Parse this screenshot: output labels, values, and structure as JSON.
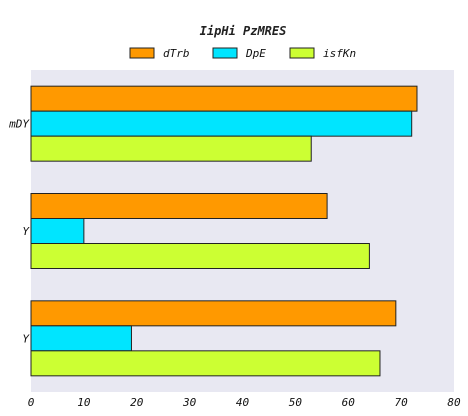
{
  "chart_data": {
    "type": "bar",
    "orientation": "horizontal",
    "title": "IipHi PzMRES",
    "xlabel": "",
    "ylabel": "",
    "categories": [
      "Y",
      "Y",
      "mDY"
    ],
    "series": [
      {
        "name": "dTrb",
        "color": "#ff9900",
        "values": [
          69,
          56,
          73
        ]
      },
      {
        "name": "DpE",
        "color": "#00e5ff",
        "values": [
          19,
          10,
          72
        ]
      },
      {
        "name": "isfKn",
        "color": "#ccff33",
        "values": [
          66,
          64,
          53
        ]
      }
    ],
    "xlim": [
      0,
      80
    ],
    "xticks": [
      0,
      10,
      20,
      30,
      40,
      50,
      60,
      70,
      80
    ],
    "legend_position": "top-center",
    "grid": false,
    "plot_background": "#e8e8f2"
  }
}
